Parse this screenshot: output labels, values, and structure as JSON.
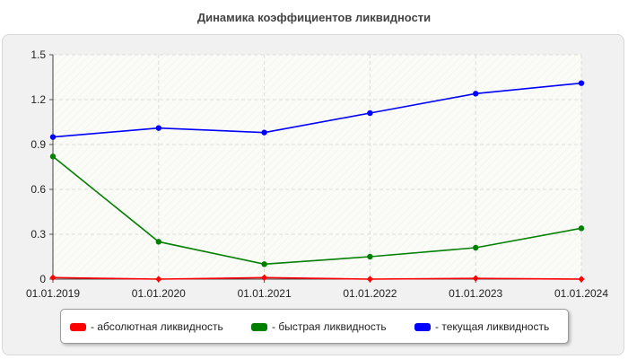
{
  "chart_data": {
    "type": "line",
    "title": "Динамика коэффициентов ликвидности",
    "categories": [
      "01.01.2019",
      "01.01.2020",
      "01.01.2021",
      "01.01.2022",
      "01.01.2023",
      "01.01.2024"
    ],
    "y_ticks": [
      "0",
      "0.3",
      "0.6",
      "0.9",
      "1.2",
      "1.5"
    ],
    "ylim": [
      0,
      1.5
    ],
    "grid": true,
    "legend_position": "bottom",
    "series": [
      {
        "name": "- абсолютная ликвидность",
        "color": "#ff0000",
        "values": [
          0.01,
          0.0,
          0.01,
          0.0,
          0.005,
          0.0
        ]
      },
      {
        "name": "- быстрая ликвидность",
        "color": "#008000",
        "values": [
          0.82,
          0.25,
          0.1,
          0.15,
          0.21,
          0.34
        ]
      },
      {
        "name": "- текущая ликвидность",
        "color": "#0000ff",
        "values": [
          0.95,
          1.01,
          0.98,
          1.11,
          1.24,
          1.31
        ]
      }
    ]
  }
}
